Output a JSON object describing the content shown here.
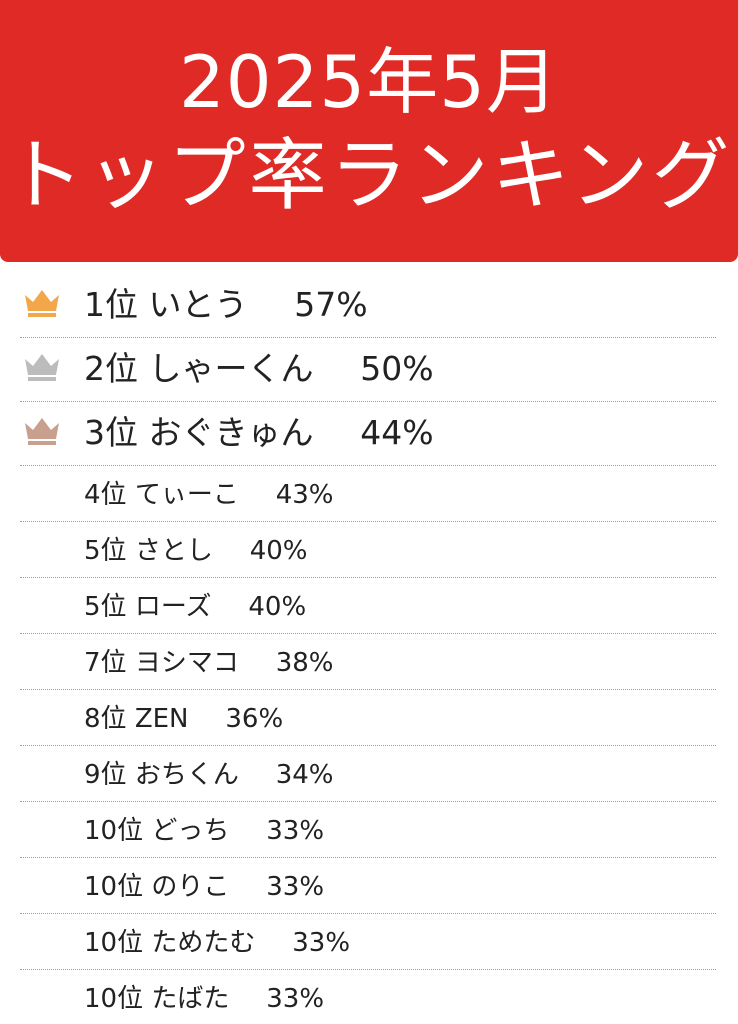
{
  "banner": {
    "title_line1": "2025年5月",
    "title_line2": "トップ率ランキング",
    "color": "#e02a25"
  },
  "crown_colors": {
    "gold": "#f2a84a",
    "silver": "#bcbcbc",
    "bronze": "#c9a08e"
  },
  "rankings": [
    {
      "rank": "1位",
      "name": "いとう",
      "rate": "57%",
      "crown": "gold-crown-icon"
    },
    {
      "rank": "2位",
      "name": "しゃーくん",
      "rate": "50%",
      "crown": "silver-crown-icon"
    },
    {
      "rank": "3位",
      "name": "おぐきゅん",
      "rate": "44%",
      "crown": "bronze-crown-icon"
    },
    {
      "rank": "4位",
      "name": "てぃーこ",
      "rate": "43%"
    },
    {
      "rank": "5位",
      "name": "さとし",
      "rate": "40%"
    },
    {
      "rank": "5位",
      "name": "ローズ",
      "rate": "40%"
    },
    {
      "rank": "7位",
      "name": "ヨシマコ",
      "rate": "38%"
    },
    {
      "rank": "8位",
      "name": "ZEN",
      "rate": "36%"
    },
    {
      "rank": "9位",
      "name": "おちくん",
      "rate": "34%"
    },
    {
      "rank": "10位",
      "name": "どっち",
      "rate": "33%"
    },
    {
      "rank": "10位",
      "name": "のりこ",
      "rate": "33%"
    },
    {
      "rank": "10位",
      "name": "ためたむ",
      "rate": "33%"
    },
    {
      "rank": "10位",
      "name": "たばた",
      "rate": "33%"
    }
  ]
}
